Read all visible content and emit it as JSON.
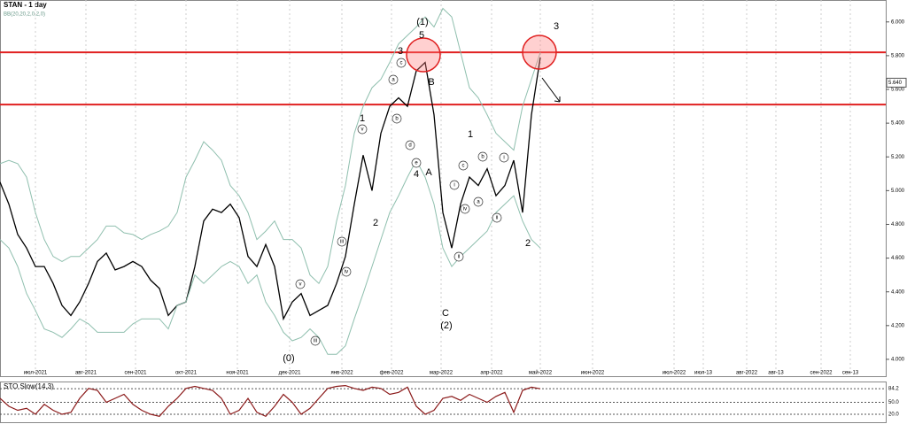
{
  "chart_data": {
    "type": "line",
    "title": "STAN - 1 day",
    "subtitle": "BB(20,20,2,0,2,0)",
    "x": [
      0,
      1,
      2,
      3,
      4,
      5,
      6,
      7,
      8,
      9,
      10,
      11,
      12,
      13,
      14,
      15,
      16,
      17,
      18,
      19,
      20,
      21,
      22,
      23,
      24,
      25,
      26,
      27,
      28,
      29,
      30,
      31,
      32,
      33,
      34,
      35,
      36,
      37,
      38,
      39,
      40,
      41,
      42,
      43,
      44,
      45,
      46,
      47,
      48,
      49,
      50,
      51,
      52,
      53,
      54,
      55,
      56,
      57,
      58,
      59,
      60,
      61
    ],
    "series": [
      {
        "name": "Close",
        "color": "#000000",
        "values": [
          5.05,
          4.92,
          4.74,
          4.66,
          4.55,
          4.55,
          4.45,
          4.32,
          4.26,
          4.34,
          4.45,
          4.58,
          4.63,
          4.53,
          4.55,
          4.58,
          4.55,
          4.47,
          4.42,
          4.26,
          4.32,
          4.34,
          4.55,
          4.82,
          4.89,
          4.87,
          4.92,
          4.84,
          4.61,
          4.55,
          4.68,
          4.55,
          4.24,
          4.34,
          4.39,
          4.26,
          4.29,
          4.32,
          4.45,
          4.61,
          4.92,
          5.21,
          5.0,
          5.34,
          5.5,
          5.55,
          5.5,
          5.71,
          5.76,
          5.45,
          4.87,
          4.66,
          4.92,
          5.08,
          5.03,
          5.13,
          4.97,
          5.03,
          5.18,
          4.87,
          5.45,
          5.79
        ]
      },
      {
        "name": "BB upper",
        "color": "#8fbfae",
        "values": [
          5.16,
          5.18,
          5.16,
          5.08,
          4.87,
          4.71,
          4.61,
          4.58,
          4.61,
          4.61,
          4.66,
          4.71,
          4.79,
          4.79,
          4.75,
          4.74,
          4.71,
          4.74,
          4.76,
          4.79,
          4.87,
          5.08,
          5.18,
          5.29,
          5.24,
          5.18,
          5.03,
          4.97,
          4.87,
          4.71,
          4.76,
          4.82,
          4.71,
          4.71,
          4.66,
          4.5,
          4.45,
          4.55,
          4.82,
          5.03,
          5.34,
          5.5,
          5.61,
          5.66,
          5.76,
          5.87,
          5.92,
          5.97,
          6.03,
          5.97,
          6.08,
          6.03,
          5.82,
          5.61,
          5.55,
          5.45,
          5.34,
          5.29,
          5.24,
          5.5,
          5.66,
          5.82
        ]
      },
      {
        "name": "BB lower",
        "color": "#8fbfae",
        "values": [
          4.71,
          4.66,
          4.55,
          4.39,
          4.29,
          4.18,
          4.16,
          4.13,
          4.18,
          4.24,
          4.21,
          4.16,
          4.16,
          4.16,
          4.16,
          4.21,
          4.24,
          4.24,
          4.24,
          4.18,
          4.32,
          4.34,
          4.5,
          4.45,
          4.5,
          4.55,
          4.58,
          4.55,
          4.45,
          4.5,
          4.34,
          4.26,
          4.16,
          4.11,
          4.13,
          4.18,
          4.13,
          4.03,
          4.03,
          4.08,
          4.24,
          4.39,
          4.55,
          4.71,
          4.87,
          4.97,
          5.08,
          5.18,
          5.08,
          4.92,
          4.66,
          4.55,
          4.61,
          4.66,
          4.71,
          4.76,
          4.87,
          4.92,
          4.97,
          4.82,
          4.71,
          4.66
        ]
      }
    ],
    "xlim": [
      0,
      100
    ],
    "xticks": [
      {
        "value": 4,
        "label": "июл-2021"
      },
      {
        "value": 9.7,
        "label": "авг-2021"
      },
      {
        "value": 15.3,
        "label": "сен-2021"
      },
      {
        "value": 21,
        "label": "окт-2021"
      },
      {
        "value": 26.8,
        "label": "ноя-2021"
      },
      {
        "value": 32.7,
        "label": "дек-2021"
      },
      {
        "value": 38.6,
        "label": "янв-2022"
      },
      {
        "value": 44.2,
        "label": "фев-2022"
      },
      {
        "value": 49.8,
        "label": "мар-2022"
      },
      {
        "value": 55.5,
        "label": "апр-2022"
      },
      {
        "value": 61,
        "label": "май-2022"
      },
      {
        "value": 66.9,
        "label": "июн-2022"
      },
      {
        "value": 76.1,
        "label": "июл-2022"
      },
      {
        "value": 79.4,
        "label": "июл-13"
      },
      {
        "value": 84.3,
        "label": "авг-2022"
      },
      {
        "value": 87.6,
        "label": "авг-13"
      },
      {
        "value": 92.7,
        "label": "сен-2022"
      },
      {
        "value": 96,
        "label": "сен-13"
      }
    ],
    "ylim": [
      3.9,
      6.13
    ],
    "yticks": [
      {
        "value": 4,
        "label": "4.000"
      },
      {
        "value": 4.2,
        "label": "4.200"
      },
      {
        "value": 4.4,
        "label": "4.400"
      },
      {
        "value": 4.6,
        "label": "4.600"
      },
      {
        "value": 4.8,
        "label": "4.800"
      },
      {
        "value": 5,
        "label": "5.000"
      },
      {
        "value": 5.2,
        "label": "5.200"
      },
      {
        "value": 5.4,
        "label": "5.400"
      },
      {
        "value": 5.6,
        "label": "5.600"
      },
      {
        "value": 5.8,
        "label": "5.800"
      },
      {
        "value": 6,
        "label": "6.000"
      }
    ],
    "levels": [
      5.82,
      5.51
    ],
    "level_color": "#e02020",
    "last_price": {
      "value": 5.64,
      "label": "5.640"
    },
    "annotations": [
      "(1)",
      "5",
      "3",
      "B",
      "A",
      "4",
      "1",
      "2",
      "(0)",
      "C",
      "(2)",
      "3",
      "1",
      "2",
      "a",
      "b",
      "c",
      "d",
      "e",
      "i",
      "ii",
      "iii",
      "iv",
      "v",
      "a",
      "b",
      "c",
      "i",
      "ii",
      "iii",
      "iv",
      "v"
    ],
    "oscillator": {
      "title": "STO Slow(14,3)",
      "color": "#8b1a1a",
      "ylim": [
        0,
        100
      ],
      "yticks": [
        {
          "value": 84.2,
          "label": "84.2"
        },
        {
          "value": 50,
          "label": "50.0"
        },
        {
          "value": 20,
          "label": "20.0"
        }
      ],
      "values": [
        60,
        40,
        30,
        35,
        20,
        45,
        30,
        20,
        25,
        60,
        85,
        80,
        50,
        60,
        70,
        45,
        30,
        20,
        15,
        40,
        60,
        85,
        90,
        85,
        80,
        60,
        20,
        30,
        60,
        25,
        15,
        40,
        70,
        50,
        20,
        35,
        60,
        85,
        90,
        92,
        85,
        80,
        88,
        85,
        70,
        75,
        88,
        40,
        20,
        30,
        60,
        65,
        55,
        70,
        60,
        50,
        65,
        75,
        25,
        80,
        88,
        84
      ]
    }
  }
}
